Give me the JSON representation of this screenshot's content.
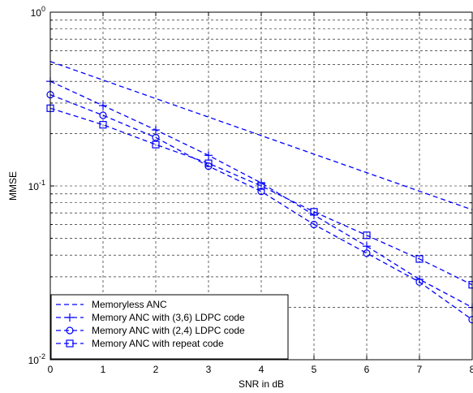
{
  "chart_data": {
    "type": "line",
    "title": "",
    "xlabel": "SNR in dB",
    "ylabel": "MMSE",
    "x_scale": "linear",
    "y_scale": "log",
    "xlim": [
      0,
      8
    ],
    "ylim": [
      0.01,
      1
    ],
    "x_ticks": [
      "0",
      "1",
      "2",
      "3",
      "4",
      "5",
      "6",
      "7",
      "8"
    ],
    "y_ticks": [
      {
        "value": 0.01,
        "base": "10",
        "exp": "-2"
      },
      {
        "value": 0.1,
        "base": "10",
        "exp": "-1"
      },
      {
        "value": 1,
        "base": "10",
        "exp": "0"
      }
    ],
    "grid": "dashed, major and minor",
    "legend_position": "bottom-left",
    "color": "#0000ff",
    "series": [
      {
        "name": "Memoryless ANC",
        "marker": "none",
        "x": [
          0,
          8
        ],
        "y": [
          0.52,
          0.073
        ]
      },
      {
        "name": "Memory ANC with (3,6) LDPC code",
        "marker": "plus",
        "x": [
          0,
          1,
          2,
          3,
          4,
          5,
          6,
          7,
          8
        ],
        "y": [
          0.4,
          0.29,
          0.21,
          0.15,
          0.104,
          0.068,
          0.045,
          0.029,
          0.02
        ]
      },
      {
        "name": "Memory ANC with (2,4) LDPC code",
        "marker": "circle",
        "x": [
          0,
          1,
          2,
          3,
          4,
          5,
          6,
          7,
          8
        ],
        "y": [
          0.335,
          0.255,
          0.19,
          0.13,
          0.093,
          0.06,
          0.041,
          0.028,
          0.017
        ]
      },
      {
        "name": "Memory ANC with repeat code",
        "marker": "square",
        "x": [
          0,
          1,
          2,
          3,
          4,
          5,
          6,
          7,
          8
        ],
        "y": [
          0.28,
          0.225,
          0.173,
          0.135,
          0.1,
          0.071,
          0.052,
          0.038,
          0.027
        ]
      }
    ]
  }
}
